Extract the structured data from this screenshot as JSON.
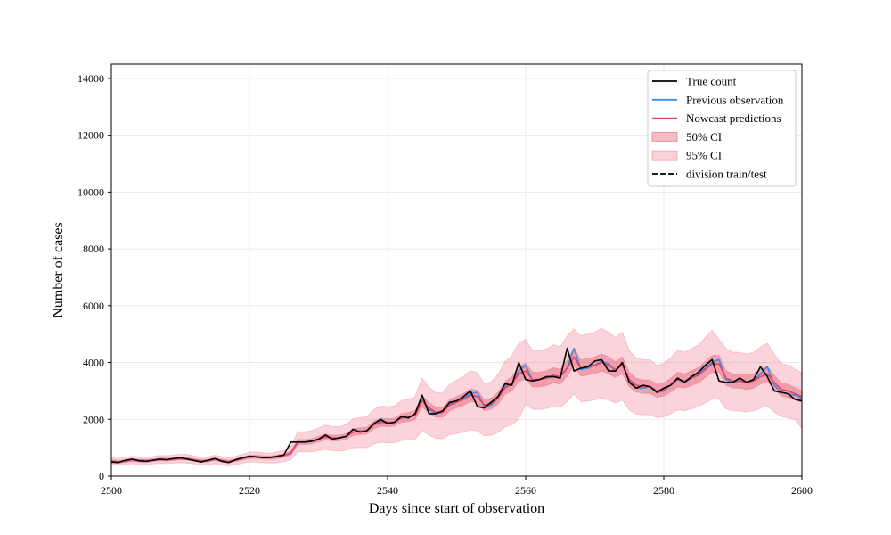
{
  "chart_data": {
    "type": "line",
    "xlabel": "Days since start of observation",
    "ylabel": "Number of cases",
    "xlim": [
      2500,
      2600
    ],
    "ylim": [
      0,
      14500
    ],
    "xticks": [
      2500,
      2520,
      2540,
      2560,
      2580,
      2600
    ],
    "yticks": [
      0,
      2000,
      4000,
      6000,
      8000,
      10000,
      12000,
      14000
    ],
    "grid": true,
    "legend_position": "top-right",
    "colors": {
      "true_count": "#000000",
      "previous_observation": "#3a8ee6",
      "nowcast": "#e3455f",
      "ci50": "#e3455f",
      "ci95": "#f07a8c"
    },
    "legend": [
      {
        "label": "True count",
        "kind": "line",
        "color": "#000000"
      },
      {
        "label": "Previous observation",
        "kind": "line",
        "color": "#3a8ee6"
      },
      {
        "label": "Nowcast predictions",
        "kind": "line",
        "color": "#e3455f"
      },
      {
        "label": "50% CI",
        "kind": "band",
        "color": "#e3455f"
      },
      {
        "label": "95% CI",
        "kind": "band",
        "color": "#f07a8c"
      },
      {
        "label": "division train/test",
        "kind": "dashed",
        "color": "#000000"
      }
    ],
    "x": [
      2500,
      2501,
      2502,
      2503,
      2504,
      2505,
      2506,
      2507,
      2508,
      2509,
      2510,
      2511,
      2512,
      2513,
      2514,
      2515,
      2516,
      2517,
      2518,
      2519,
      2520,
      2521,
      2522,
      2523,
      2524,
      2525,
      2526,
      2527,
      2528,
      2529,
      2530,
      2531,
      2532,
      2533,
      2534,
      2535,
      2536,
      2537,
      2538,
      2539,
      2540,
      2541,
      2542,
      2543,
      2544,
      2545,
      2546,
      2547,
      2548,
      2549,
      2550,
      2551,
      2552,
      2553,
      2554,
      2555,
      2556,
      2557,
      2558,
      2559,
      2560,
      2561,
      2562,
      2563,
      2564,
      2565,
      2566,
      2567,
      2568,
      2569,
      2570,
      2571,
      2572,
      2573,
      2574,
      2575,
      2576,
      2577,
      2578,
      2579,
      2580,
      2581,
      2582,
      2583,
      2584,
      2585,
      2586,
      2587,
      2588,
      2589,
      2590,
      2591,
      2592,
      2593,
      2594,
      2595,
      2596,
      2597,
      2598,
      2599,
      2600
    ],
    "series": [
      {
        "name": "True count",
        "values": [
          500,
          480,
          560,
          600,
          540,
          520,
          560,
          600,
          580,
          620,
          650,
          600,
          550,
          500,
          560,
          620,
          520,
          480,
          580,
          650,
          700,
          680,
          650,
          660,
          700,
          750,
          1200,
          1200,
          1200,
          1230,
          1300,
          1450,
          1300,
          1350,
          1400,
          1650,
          1550,
          1600,
          1850,
          2000,
          1850,
          1900,
          2100,
          2050,
          2200,
          2850,
          2200,
          2200,
          2300,
          2600,
          2650,
          2800,
          3000,
          2450,
          2400,
          2600,
          2800,
          3250,
          3200,
          4000,
          3400,
          3350,
          3400,
          3500,
          3500,
          3450,
          4500,
          3700,
          3800,
          3850,
          4050,
          4100,
          3700,
          3700,
          4000,
          3300,
          3100,
          3200,
          3150,
          2950,
          3100,
          3200,
          3450,
          3300,
          3500,
          3650,
          3900,
          4100,
          3350,
          3300,
          3300,
          3450,
          3300,
          3400,
          3850,
          3500,
          3000,
          2950,
          2900,
          2700,
          2650
        ]
      },
      {
        "name": "Previous observation",
        "values": [
          520,
          500,
          520,
          580,
          560,
          540,
          560,
          590,
          580,
          600,
          620,
          610,
          570,
          530,
          540,
          600,
          560,
          500,
          560,
          620,
          680,
          690,
          660,
          650,
          680,
          720,
          800,
          1200,
          1200,
          1220,
          1280,
          1400,
          1350,
          1330,
          1400,
          1550,
          1600,
          1580,
          1800,
          1950,
          1900,
          1880,
          2050,
          2080,
          2150,
          2700,
          2350,
          2200,
          2250,
          2550,
          2620,
          2750,
          2900,
          2950,
          2450,
          2500,
          2750,
          3150,
          3250,
          3700,
          3900,
          3350,
          3400,
          3450,
          3500,
          3500,
          3800,
          4500,
          3750,
          3800,
          3900,
          4050,
          3950,
          3700,
          3950,
          3350,
          3100,
          3100,
          3150,
          2950,
          3000,
          3200,
          3400,
          3300,
          3450,
          3600,
          3800,
          4000,
          4100,
          3400,
          3300,
          3350,
          3300,
          3350,
          3600,
          3850,
          3200,
          2950,
          2900,
          2850,
          2750
        ]
      },
      {
        "name": "Nowcast predictions",
        "values": [
          520,
          500,
          530,
          570,
          550,
          540,
          560,
          590,
          580,
          600,
          620,
          610,
          570,
          530,
          550,
          600,
          550,
          510,
          560,
          620,
          680,
          680,
          660,
          650,
          680,
          720,
          820,
          1200,
          1200,
          1230,
          1300,
          1380,
          1340,
          1340,
          1400,
          1550,
          1580,
          1600,
          1800,
          1900,
          1880,
          1900,
          2050,
          2080,
          2150,
          2650,
          2400,
          2250,
          2250,
          2500,
          2600,
          2700,
          2850,
          2800,
          2500,
          2550,
          2750,
          3100,
          3250,
          3600,
          3700,
          3400,
          3400,
          3450,
          3550,
          3500,
          3800,
          4200,
          3800,
          3850,
          3900,
          4000,
          3900,
          3750,
          3900,
          3400,
          3200,
          3150,
          3150,
          3000,
          3050,
          3200,
          3400,
          3350,
          3450,
          3550,
          3750,
          3950,
          3950,
          3450,
          3350,
          3350,
          3300,
          3350,
          3500,
          3600,
          3300,
          3050,
          3000,
          2900,
          2800
        ]
      }
    ],
    "ci50": {
      "name": "50% CI",
      "lower": [
        460,
        450,
        480,
        520,
        500,
        490,
        510,
        540,
        530,
        550,
        570,
        560,
        520,
        480,
        500,
        550,
        500,
        460,
        510,
        570,
        620,
        620,
        600,
        590,
        620,
        660,
        740,
        1110,
        1110,
        1140,
        1200,
        1280,
        1240,
        1240,
        1300,
        1430,
        1460,
        1480,
        1660,
        1760,
        1740,
        1760,
        1900,
        1920,
        1990,
        2450,
        2210,
        2070,
        2070,
        2300,
        2400,
        2490,
        2630,
        2580,
        2300,
        2350,
        2540,
        2870,
        3000,
        3330,
        3420,
        3140,
        3140,
        3190,
        3280,
        3240,
        3510,
        3890,
        3510,
        3560,
        3600,
        3700,
        3600,
        3470,
        3600,
        3140,
        2960,
        2910,
        2910,
        2770,
        2820,
        2960,
        3140,
        3100,
        3190,
        3280,
        3470,
        3650,
        3650,
        3190,
        3100,
        3100,
        3050,
        3100,
        3240,
        3330,
        3050,
        2820,
        2770,
        2680,
        2590
      ],
      "upper": [
        580,
        550,
        580,
        620,
        600,
        590,
        610,
        640,
        630,
        650,
        670,
        660,
        620,
        580,
        600,
        650,
        600,
        560,
        610,
        670,
        740,
        740,
        720,
        710,
        740,
        780,
        900,
        1290,
        1290,
        1320,
        1400,
        1480,
        1440,
        1440,
        1500,
        1670,
        1700,
        1720,
        1940,
        2040,
        2020,
        2040,
        2200,
        2240,
        2310,
        2850,
        2590,
        2430,
        2430,
        2700,
        2800,
        2910,
        3070,
        3020,
        2700,
        2750,
        2960,
        3330,
        3500,
        3870,
        3980,
        3660,
        3660,
        3710,
        3820,
        3760,
        4090,
        4510,
        4090,
        4140,
        4200,
        4300,
        4200,
        4030,
        4200,
        3660,
        3440,
        3390,
        3390,
        3230,
        3280,
        3440,
        3660,
        3600,
        3710,
        3820,
        4030,
        4250,
        4250,
        3710,
        3600,
        3600,
        3550,
        3600,
        3760,
        3870,
        3550,
        3280,
        3230,
        3120,
        3010
      ]
    },
    "ci95": {
      "name": "95% CI",
      "lower": [
        400,
        390,
        410,
        440,
        420,
        410,
        430,
        450,
        440,
        460,
        470,
        460,
        430,
        390,
        400,
        440,
        400,
        360,
        400,
        450,
        500,
        490,
        470,
        460,
        480,
        510,
        580,
        860,
        850,
        860,
        900,
        940,
        900,
        880,
        910,
        1000,
        1010,
        1010,
        1130,
        1190,
        1170,
        1170,
        1260,
        1270,
        1300,
        1600,
        1440,
        1330,
        1320,
        1460,
        1500,
        1550,
        1630,
        1590,
        1420,
        1440,
        1540,
        1730,
        1810,
        2010,
        2540,
        2350,
        2350,
        2380,
        2450,
        2420,
        2620,
        2900,
        2620,
        2650,
        2680,
        2750,
        2680,
        2580,
        2680,
        2330,
        2190,
        2160,
        2160,
        2060,
        2090,
        2200,
        2330,
        2300,
        2370,
        2440,
        2580,
        2710,
        2710,
        2370,
        2300,
        2300,
        2260,
        2300,
        2400,
        2470,
        2260,
        2090,
        2060,
        1990,
        1680
      ],
      "upper": [
        650,
        620,
        660,
        700,
        680,
        670,
        690,
        730,
        720,
        740,
        770,
        760,
        710,
        660,
        680,
        740,
        680,
        640,
        700,
        770,
        850,
        850,
        820,
        810,
        850,
        900,
        1050,
        1560,
        1560,
        1600,
        1690,
        1800,
        1740,
        1740,
        1820,
        2020,
        2060,
        2090,
        2340,
        2470,
        2440,
        2470,
        2670,
        2700,
        2800,
        3450,
        3130,
        2940,
        2930,
        3250,
        3380,
        3510,
        3710,
        3640,
        3250,
        3320,
        3580,
        4030,
        4240,
        4680,
        4810,
        4420,
        4420,
        4480,
        4620,
        4550,
        4940,
        5180,
        4940,
        5000,
        5070,
        5200,
        5070,
        4880,
        5070,
        4420,
        4160,
        4100,
        4100,
        3900,
        3970,
        4160,
        4420,
        4360,
        4490,
        4620,
        4880,
        5140,
        4810,
        4490,
        4360,
        4360,
        4290,
        4360,
        4550,
        4680,
        4290,
        3970,
        3900,
        3770,
        3640
      ]
    }
  }
}
